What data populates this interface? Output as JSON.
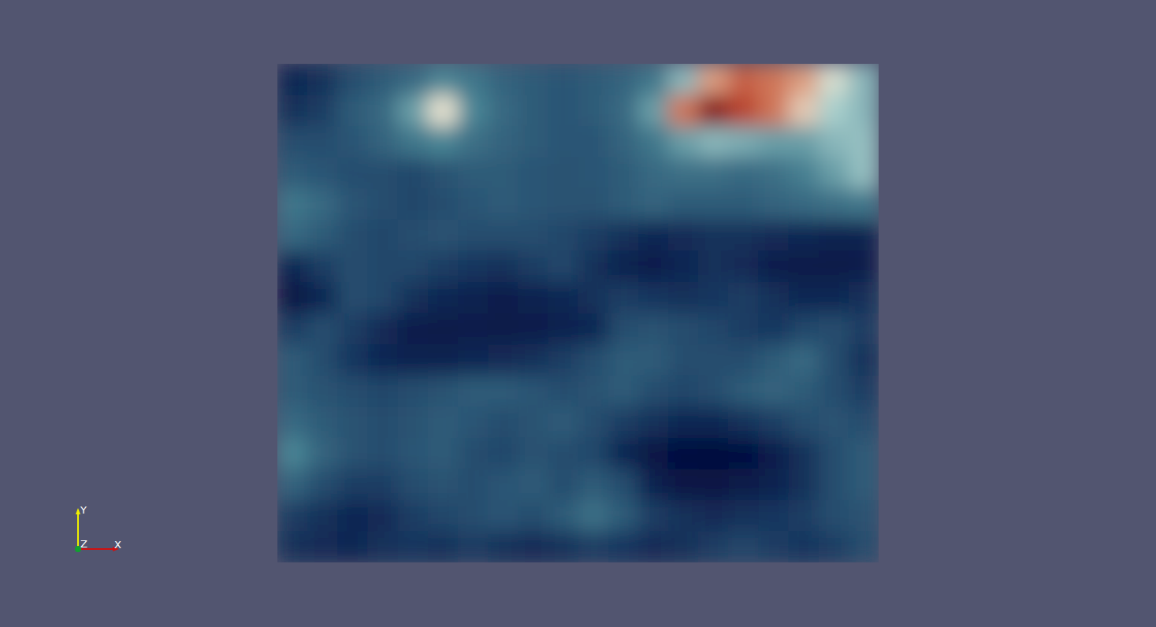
{
  "chart_data": {
    "type": "heatmap",
    "color_range": [
      0,
      1
    ],
    "axes_labels": {
      "x": "X",
      "y": "Y",
      "z": "Z"
    },
    "cells": [
      [
        0.15,
        0.2,
        0.3,
        0.35,
        0.4,
        0.5,
        0.45,
        0.38,
        0.35,
        0.33,
        0.35,
        0.38,
        0.45,
        0.6,
        0.8,
        0.88,
        0.85,
        0.8,
        0.7,
        0.6
      ],
      [
        0.2,
        0.25,
        0.35,
        0.4,
        0.55,
        0.72,
        0.5,
        0.4,
        0.35,
        0.33,
        0.35,
        0.4,
        0.55,
        0.85,
        1.0,
        0.92,
        0.85,
        0.75,
        0.65,
        0.6
      ],
      [
        0.3,
        0.3,
        0.33,
        0.38,
        0.45,
        0.5,
        0.42,
        0.38,
        0.35,
        0.33,
        0.33,
        0.38,
        0.45,
        0.55,
        0.6,
        0.58,
        0.55,
        0.55,
        0.6,
        0.62
      ],
      [
        0.35,
        0.33,
        0.3,
        0.3,
        0.28,
        0.32,
        0.35,
        0.35,
        0.33,
        0.32,
        0.33,
        0.35,
        0.4,
        0.42,
        0.42,
        0.4,
        0.42,
        0.48,
        0.55,
        0.62
      ],
      [
        0.45,
        0.4,
        0.33,
        0.3,
        0.28,
        0.3,
        0.33,
        0.35,
        0.33,
        0.32,
        0.32,
        0.35,
        0.38,
        0.35,
        0.35,
        0.35,
        0.38,
        0.4,
        0.42,
        0.45
      ],
      [
        0.4,
        0.35,
        0.3,
        0.28,
        0.3,
        0.32,
        0.3,
        0.3,
        0.3,
        0.28,
        0.25,
        0.2,
        0.15,
        0.18,
        0.2,
        0.2,
        0.18,
        0.15,
        0.12,
        0.12
      ],
      [
        0.15,
        0.25,
        0.3,
        0.28,
        0.28,
        0.25,
        0.22,
        0.2,
        0.25,
        0.28,
        0.2,
        0.12,
        0.1,
        0.15,
        0.2,
        0.18,
        0.1,
        0.08,
        0.08,
        0.1
      ],
      [
        0.05,
        0.15,
        0.3,
        0.28,
        0.2,
        0.15,
        0.12,
        0.1,
        0.12,
        0.15,
        0.2,
        0.25,
        0.22,
        0.2,
        0.22,
        0.25,
        0.2,
        0.15,
        0.15,
        0.2
      ],
      [
        0.25,
        0.3,
        0.25,
        0.18,
        0.1,
        0.08,
        0.1,
        0.08,
        0.1,
        0.12,
        0.15,
        0.3,
        0.32,
        0.3,
        0.28,
        0.25,
        0.22,
        0.28,
        0.3,
        0.25
      ],
      [
        0.35,
        0.3,
        0.22,
        0.15,
        0.12,
        0.12,
        0.15,
        0.18,
        0.2,
        0.25,
        0.3,
        0.35,
        0.35,
        0.3,
        0.3,
        0.3,
        0.35,
        0.4,
        0.3,
        0.2
      ],
      [
        0.35,
        0.32,
        0.3,
        0.28,
        0.3,
        0.32,
        0.35,
        0.35,
        0.33,
        0.3,
        0.32,
        0.35,
        0.3,
        0.28,
        0.3,
        0.35,
        0.38,
        0.35,
        0.3,
        0.25
      ],
      [
        0.4,
        0.35,
        0.32,
        0.3,
        0.32,
        0.35,
        0.33,
        0.3,
        0.32,
        0.35,
        0.3,
        0.25,
        0.2,
        0.15,
        0.15,
        0.2,
        0.25,
        0.3,
        0.32,
        0.3
      ],
      [
        0.5,
        0.38,
        0.32,
        0.3,
        0.33,
        0.35,
        0.3,
        0.28,
        0.32,
        0.3,
        0.28,
        0.15,
        0.05,
        0.02,
        0.0,
        0.02,
        0.1,
        0.2,
        0.3,
        0.35
      ],
      [
        0.38,
        0.3,
        0.25,
        0.25,
        0.3,
        0.32,
        0.3,
        0.33,
        0.35,
        0.3,
        0.35,
        0.3,
        0.12,
        0.05,
        0.05,
        0.08,
        0.12,
        0.2,
        0.3,
        0.35
      ],
      [
        0.25,
        0.2,
        0.15,
        0.18,
        0.25,
        0.28,
        0.3,
        0.33,
        0.3,
        0.35,
        0.42,
        0.35,
        0.25,
        0.2,
        0.18,
        0.2,
        0.22,
        0.25,
        0.3,
        0.32
      ],
      [
        0.2,
        0.18,
        0.15,
        0.2,
        0.22,
        0.2,
        0.25,
        0.2,
        0.18,
        0.2,
        0.25,
        0.22,
        0.18,
        0.2,
        0.25,
        0.28,
        0.25,
        0.22,
        0.25,
        0.3
      ]
    ]
  }
}
